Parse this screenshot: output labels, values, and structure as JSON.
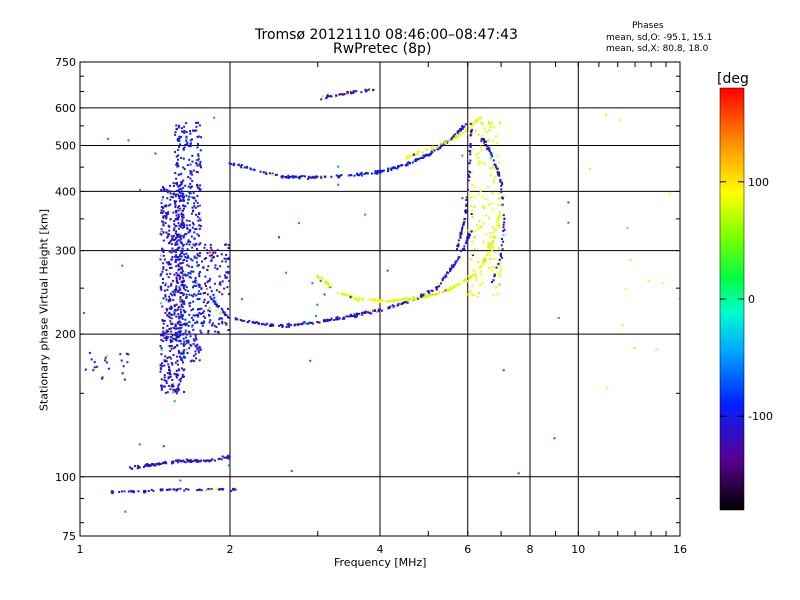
{
  "chart_data": {
    "type": "scatter",
    "title": "Tromsø 20121110 08:46:00–08:47:43",
    "subtitle": "RwPretec (8p)",
    "xlabel": "Frequency [MHz]",
    "ylabel": "Stationary phase Virtual Height [km]",
    "x_scale": "log",
    "y_scale": "log",
    "xlim": [
      1,
      16
    ],
    "ylim": [
      75,
      750
    ],
    "grid": true,
    "x_ticks": [
      1,
      2,
      4,
      6,
      8,
      10,
      16
    ],
    "x_tick_labels": [
      "1",
      "2",
      "4",
      "6",
      "8",
      "10",
      "16"
    ],
    "y_ticks": [
      75,
      100,
      200,
      300,
      400,
      500,
      600,
      750
    ],
    "y_tick_labels": [
      "75",
      "100",
      "200",
      "300",
      "400",
      "500",
      "600",
      "750"
    ],
    "legend": {
      "title": "Phases",
      "lines": [
        "mean, sd,O: -95.1, 15.1",
        "mean, sd,X:  80.8, 18.0"
      ]
    },
    "colorbar": {
      "label": "[deg",
      "range": [
        -180,
        180
      ],
      "ticks": [
        100,
        0,
        -100
      ],
      "tick_labels": [
        "100",
        "0",
        "-100"
      ],
      "colormap": "rainbow-black-to-red"
    },
    "traces": [
      {
        "kind": "band",
        "f": [
          1.45,
          1.62
        ],
        "h": [
          150,
          420
        ],
        "phase": -110,
        "n": 520,
        "spread": 0.02
      },
      {
        "kind": "band",
        "f": [
          1.55,
          1.75
        ],
        "h": [
          175,
          560
        ],
        "phase": -100,
        "n": 460,
        "spread": 0.02
      },
      {
        "kind": "band",
        "f": [
          1.75,
          2.0
        ],
        "h": [
          200,
          310
        ],
        "phase": -105,
        "n": 130,
        "spread": 0.03
      },
      {
        "kind": "curve",
        "f": [
          1.7,
          2.0,
          2.5,
          3.0,
          3.5,
          4.0,
          4.6,
          5.2,
          5.7,
          6.1
        ],
        "h": [
          260,
          215,
          208,
          212,
          218,
          225,
          235,
          250,
          285,
          330
        ],
        "phase": -105,
        "n": 260,
        "spread": 0.012
      },
      {
        "kind": "curve",
        "f": [
          2.0,
          2.5,
          3.0,
          3.5,
          4.0,
          4.5,
          5.0,
          5.5,
          6.0
        ],
        "h": [
          460,
          430,
          428,
          432,
          440,
          455,
          478,
          510,
          560
        ],
        "phase": -100,
        "n": 230,
        "spread": 0.01
      },
      {
        "kind": "curve",
        "f": [
          4.5,
          5.0,
          5.5,
          6.0,
          6.4
        ],
        "h": [
          470,
          490,
          510,
          540,
          575
        ],
        "phase": 90,
        "n": 70,
        "spread": 0.012
      },
      {
        "kind": "curve",
        "f": [
          3.0,
          3.3,
          3.6,
          4.0,
          4.4,
          4.8,
          5.3,
          5.8,
          6.3,
          6.8,
          7.1
        ],
        "h": [
          265,
          245,
          237,
          235,
          236,
          238,
          245,
          255,
          270,
          320,
          400
        ],
        "phase": 80,
        "n": 200,
        "spread": 0.012
      },
      {
        "kind": "band",
        "f": [
          6.0,
          7.0
        ],
        "h": [
          240,
          560
        ],
        "phase": 85,
        "n": 160,
        "spread": 0.02
      },
      {
        "kind": "curve",
        "f": [
          5.7,
          5.95,
          6.05,
          6.1
        ],
        "h": [
          300,
          360,
          450,
          560
        ],
        "phase": -110,
        "n": 60,
        "spread": 0.01
      },
      {
        "kind": "curve",
        "f": [
          6.4,
          6.7,
          7.0,
          7.1,
          7.0,
          6.7
        ],
        "h": [
          520,
          480,
          420,
          350,
          290,
          255
        ],
        "phase": -110,
        "n": 70,
        "spread": 0.012
      },
      {
        "kind": "curve",
        "f": [
          1.25,
          1.4,
          1.6,
          1.8,
          2.0
        ],
        "h": [
          104,
          106,
          108,
          108,
          110
        ],
        "phase": -110,
        "n": 110,
        "spread": 0.012
      },
      {
        "kind": "curve",
        "f": [
          1.15,
          1.3,
          1.5,
          1.7,
          1.9,
          2.05
        ],
        "h": [
          93,
          93,
          94,
          94,
          94,
          94
        ],
        "phase": -105,
        "n": 70,
        "spread": 0.008
      },
      {
        "kind": "curve",
        "f": [
          3.05,
          3.3,
          3.6,
          3.9
        ],
        "h": [
          630,
          640,
          650,
          655
        ],
        "phase": -120,
        "n": 35,
        "spread": 0.01
      },
      {
        "kind": "band",
        "f": [
          1.02,
          1.25
        ],
        "h": [
          160,
          185
        ],
        "phase": -100,
        "n": 22,
        "spread": 0.01
      },
      {
        "kind": "band",
        "f": [
          1.0,
          10.8
        ],
        "h": [
          80,
          680
        ],
        "phase": -60,
        "n": 45,
        "spread": 0.0
      },
      {
        "kind": "band",
        "f": [
          10.5,
          16.0
        ],
        "h": [
          150,
          620
        ],
        "phase": 100,
        "n": 14,
        "spread": 0.0
      }
    ]
  }
}
